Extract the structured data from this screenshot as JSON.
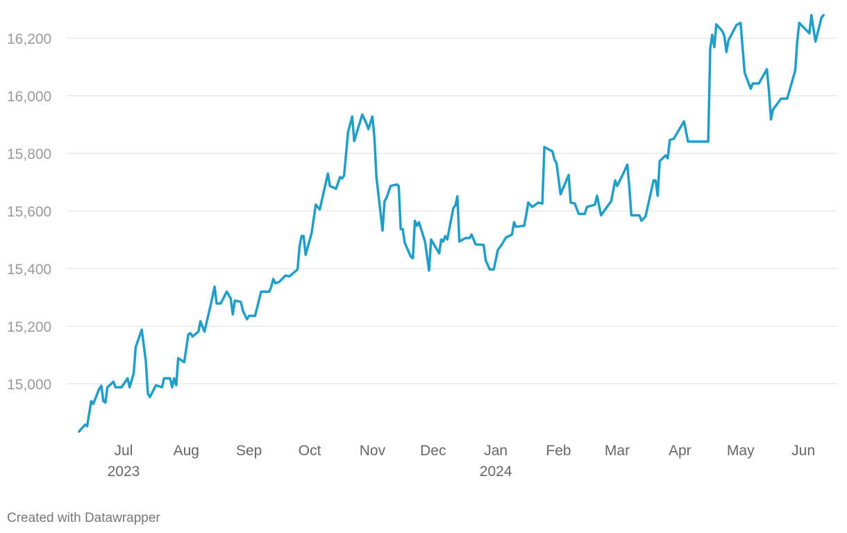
{
  "chart_data": {
    "type": "line",
    "x": [
      -22,
      -19,
      -18,
      -16,
      -15,
      -12,
      -11,
      -10,
      -9,
      -8,
      -5,
      -4,
      -1,
      2,
      3,
      5,
      6,
      9,
      11,
      12,
      13,
      16,
      19,
      20,
      23,
      24,
      25,
      26,
      27,
      30,
      32,
      33,
      34,
      37,
      38,
      40,
      43,
      45,
      46,
      48,
      51,
      53,
      54,
      55,
      58,
      59,
      61,
      62,
      65,
      68,
      72,
      73,
      74,
      75,
      77,
      80,
      82,
      84,
      86,
      87,
      88,
      89,
      90,
      93,
      95,
      97,
      101,
      102,
      105,
      107,
      108,
      109,
      111,
      113,
      114,
      118,
      120,
      121,
      123,
      124,
      125,
      128,
      129,
      130,
      132,
      135,
      136,
      137,
      138,
      139,
      142,
      143,
      144,
      145,
      146,
      149,
      151,
      152,
      154,
      156,
      157,
      158,
      159,
      160,
      163,
      164,
      165,
      166,
      169,
      171,
      172,
      174,
      178,
      179,
      181,
      183,
      185,
      187,
      189,
      192,
      193,
      194,
      198,
      199,
      200,
      202,
      205,
      207,
      208,
      212,
      213,
      214,
      216,
      220,
      221,
      223,
      225,
      228,
      229,
      233,
      234,
      236,
      241,
      243,
      244,
      247,
      249,
      250,
      251,
      255,
      256,
      258,
      262,
      263,
      264,
      265,
      268,
      269,
      270,
      272,
      277,
      279,
      289,
      290,
      291,
      292,
      293,
      296,
      297,
      298,
      299,
      303,
      305,
      307,
      310,
      311,
      314,
      318,
      319,
      320,
      321,
      323,
      325,
      328,
      332,
      333,
      334,
      339,
      340,
      342,
      345,
      346
    ],
    "series": [
      {
        "color": "#1f9ec9",
        "values": [
          14834,
          14858,
          14853,
          14940,
          14930,
          14983,
          14993,
          14940,
          14935,
          14988,
          15007,
          14988,
          14988,
          15019,
          14988,
          15036,
          15128,
          15188,
          15079,
          14966,
          14954,
          14995,
          14988,
          15019,
          15019,
          14988,
          15019,
          14995,
          15089,
          15075,
          15171,
          15176,
          15164,
          15181,
          15217,
          15181,
          15272,
          15337,
          15279,
          15279,
          15320,
          15296,
          15241,
          15289,
          15284,
          15253,
          15224,
          15236,
          15236,
          15320,
          15320,
          15337,
          15364,
          15349,
          15354,
          15376,
          15373,
          15385,
          15397,
          15477,
          15513,
          15513,
          15448,
          15525,
          15622,
          15605,
          15730,
          15687,
          15677,
          15718,
          15713,
          15723,
          15875,
          15928,
          15843,
          15935,
          15904,
          15884,
          15928,
          15855,
          15718,
          15532,
          15634,
          15646,
          15687,
          15692,
          15687,
          15537,
          15537,
          15489,
          15441,
          15436,
          15566,
          15549,
          15561,
          15494,
          15393,
          15501,
          15477,
          15453,
          15501,
          15494,
          15513,
          15501,
          15610,
          15619,
          15651,
          15494,
          15506,
          15506,
          15518,
          15484,
          15482,
          15429,
          15397,
          15397,
          15465,
          15484,
          15508,
          15518,
          15561,
          15545,
          15549,
          15585,
          15629,
          15614,
          15629,
          15626,
          15822,
          15807,
          15778,
          15766,
          15658,
          15725,
          15629,
          15626,
          15590,
          15590,
          15614,
          15622,
          15653,
          15585,
          15634,
          15706,
          15687,
          15730,
          15761,
          15682,
          15585,
          15585,
          15566,
          15581,
          15706,
          15706,
          15653,
          15773,
          15793,
          15783,
          15846,
          15851,
          15911,
          15841,
          15841,
          16164,
          16212,
          16169,
          16248,
          16224,
          16207,
          16152,
          16193,
          16246,
          16253,
          16080,
          16024,
          16043,
          16043,
          16092,
          16019,
          15918,
          15952,
          15971,
          15990,
          15990,
          16087,
          16188,
          16253,
          16217,
          16280,
          16188,
          16272,
          16280
        ]
      }
    ],
    "xlim": [
      -28,
      352
    ],
    "xticks": [
      {
        "value": 0,
        "label": "Jul"
      },
      {
        "value": 31,
        "label": "Aug"
      },
      {
        "value": 62,
        "label": "Sep"
      },
      {
        "value": 92,
        "label": "Oct"
      },
      {
        "value": 123,
        "label": "Nov"
      },
      {
        "value": 153,
        "label": "Dec"
      },
      {
        "value": 184,
        "label": "Jan"
      },
      {
        "value": 215,
        "label": "Feb"
      },
      {
        "value": 244,
        "label": "Mar"
      },
      {
        "value": 275,
        "label": "Apr"
      },
      {
        "value": 305,
        "label": "May"
      },
      {
        "value": 336,
        "label": "Jun"
      }
    ],
    "xticks_years": [
      {
        "value": 0,
        "label": "2023"
      },
      {
        "value": 184,
        "label": "2024"
      }
    ],
    "ylim": [
      14800,
      16300
    ],
    "yticks": [
      {
        "value": 15000,
        "label": "15,000"
      },
      {
        "value": 15200,
        "label": "15,200"
      },
      {
        "value": 15400,
        "label": "15,400"
      },
      {
        "value": 15600,
        "label": "15,600"
      },
      {
        "value": 15800,
        "label": "15,800"
      },
      {
        "value": 16000,
        "label": "16,000"
      },
      {
        "value": 16200,
        "label": "16,200"
      }
    ],
    "grid": true
  },
  "footer": "Created with Datawrapper"
}
